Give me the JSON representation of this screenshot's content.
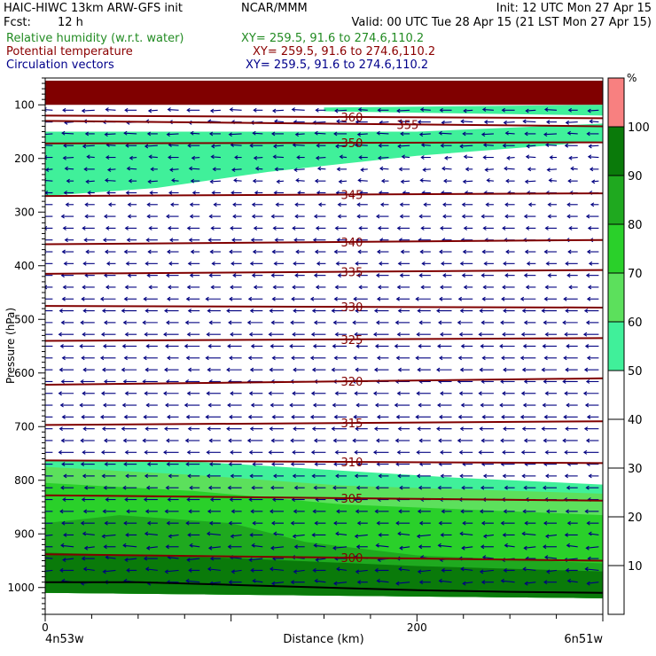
{
  "header": {
    "left_line1": "HAIC-HIWC 13km ARW-GFS init",
    "center_line1": "NCAR/MMM",
    "right_line1": "Init: 12 UTC Mon 27 Apr 15",
    "fcst_label": "Fcst:",
    "fcst_value": "12 h",
    "valid": "Valid: 00 UTC Tue 28 Apr 15 (21 LST Mon 27 Apr 15)"
  },
  "fields": [
    {
      "label": "Relative humidity (w.r.t. water)",
      "xy": "XY= 259.5, 91.6 to 274.6,110.2",
      "color": "#228b22"
    },
    {
      "label": "Potential temperature",
      "xy": "XY= 259.5, 91.6 to 274.6,110.2",
      "color": "#8b0000"
    },
    {
      "label": "Circulation vectors",
      "xy": "XY= 259.5, 91.6 to 274.6,110.2",
      "color": "#00008b"
    }
  ],
  "colors": {
    "theta_line": "#800000",
    "vector": "#000080",
    "top_band": "#800000"
  },
  "chart_data": {
    "type": "heatmap",
    "xlabel": "Distance (km)",
    "ylabel": "Pressure (hPa)",
    "x_range": [
      0,
      300
    ],
    "x_ticks": [
      0,
      200
    ],
    "x_endpoints": [
      "4n53w",
      "6n51w"
    ],
    "y_range": [
      1050,
      50
    ],
    "y_ticks": [
      100,
      200,
      300,
      400,
      500,
      600,
      700,
      800,
      900,
      1000
    ],
    "colorbar": {
      "unit": "%",
      "ticks": [
        10,
        20,
        30,
        40,
        50,
        60,
        70,
        80,
        90,
        100
      ],
      "bins": [
        {
          "from": 0,
          "to": 50,
          "color": "#ffffff"
        },
        {
          "from": 50,
          "to": 60,
          "color": "#40f09a"
        },
        {
          "from": 60,
          "to": 70,
          "color": "#5ce05c"
        },
        {
          "from": 70,
          "to": 80,
          "color": "#2ad02a"
        },
        {
          "from": 80,
          "to": 90,
          "color": "#1fa91f"
        },
        {
          "from": 90,
          "to": 100,
          "color": "#0a7a0a"
        },
        {
          "from": 100,
          "to": 110,
          "color": "#f88080"
        }
      ]
    },
    "theta_isentropes": [
      {
        "label": "360",
        "left_p": 120,
        "right_p": 125,
        "label_x": 165
      },
      {
        "label": "355",
        "left_p": 130,
        "right_p": 140,
        "label_x": 195
      },
      {
        "label": "350",
        "left_p": 172,
        "right_p": 170,
        "label_x": 165
      },
      {
        "label": "345",
        "left_p": 270,
        "right_p": 265,
        "label_x": 165
      },
      {
        "label": "340",
        "left_p": 360,
        "right_p": 352,
        "label_x": 165
      },
      {
        "label": "335",
        "left_p": 415,
        "right_p": 408,
        "label_x": 165
      },
      {
        "label": "330",
        "left_p": 475,
        "right_p": 478,
        "label_x": 165
      },
      {
        "label": "325",
        "left_p": 540,
        "right_p": 535,
        "label_x": 165
      },
      {
        "label": "320",
        "left_p": 622,
        "right_p": 610,
        "label_x": 165
      },
      {
        "label": "315",
        "left_p": 697,
        "right_p": 690,
        "label_x": 165
      },
      {
        "label": "310",
        "left_p": 763,
        "right_p": 768,
        "label_x": 165
      },
      {
        "label": "305",
        "left_p": 828,
        "right_p": 838,
        "label_x": 165
      },
      {
        "label": "300",
        "left_p": 938,
        "right_p": 950,
        "label_x": 165
      }
    ],
    "rh_regions": [
      {
        "level": 110,
        "top": [
          [
            0,
            55
          ],
          [
            300,
            55
          ]
        ],
        "bottom": [
          [
            0,
            100
          ],
          [
            300,
            100
          ]
        ]
      },
      {
        "level": 50,
        "top": [
          [
            0,
            150
          ],
          [
            120,
            150
          ],
          [
            200,
            150
          ],
          [
            300,
            135
          ]
        ],
        "bottom": [
          [
            0,
            270
          ],
          [
            60,
            255
          ],
          [
            120,
            225
          ],
          [
            200,
            195
          ],
          [
            300,
            168
          ]
        ]
      },
      {
        "level": 50,
        "top": [
          [
            150,
            105
          ],
          [
            300,
            100
          ]
        ],
        "bottom": [
          [
            150,
            112
          ],
          [
            300,
            120
          ]
        ]
      },
      {
        "level": 50,
        "top": [
          [
            0,
            762
          ],
          [
            80,
            765
          ],
          [
            150,
            780
          ],
          [
            220,
            795
          ],
          [
            300,
            808
          ]
        ],
        "bottom": [
          [
            0,
            1010
          ],
          [
            300,
            1020
          ]
        ]
      },
      {
        "level": 60,
        "top": [
          [
            0,
            775
          ],
          [
            80,
            790
          ],
          [
            160,
            810
          ],
          [
            300,
            825
          ]
        ],
        "bottom": [
          [
            0,
            1010
          ],
          [
            300,
            1020
          ]
        ]
      },
      {
        "level": 70,
        "top": [
          [
            0,
            805
          ],
          [
            80,
            820
          ],
          [
            160,
            845
          ],
          [
            300,
            865
          ]
        ],
        "bottom": [
          [
            0,
            1010
          ],
          [
            300,
            1020
          ]
        ]
      },
      {
        "level": 80,
        "top": [
          [
            0,
            880
          ],
          [
            40,
            865
          ],
          [
            100,
            880
          ],
          [
            140,
            915
          ],
          [
            200,
            940
          ],
          [
            300,
            955
          ]
        ],
        "bottom": [
          [
            0,
            1010
          ],
          [
            300,
            1020
          ]
        ]
      },
      {
        "level": 90,
        "top": [
          [
            0,
            935
          ],
          [
            100,
            945
          ],
          [
            200,
            960
          ],
          [
            300,
            970
          ]
        ],
        "bottom": [
          [
            0,
            1010
          ],
          [
            300,
            1020
          ]
        ]
      }
    ],
    "terrain_p": [
      990,
      990,
      995,
      1000,
      1005,
      1008,
      1010
    ]
  }
}
